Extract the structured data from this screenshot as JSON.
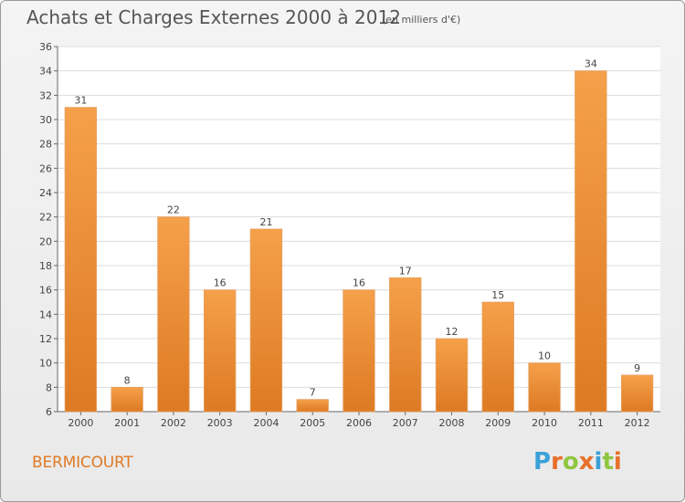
{
  "header": {
    "title": "Achats et Charges Externes 2000 à 2012",
    "subtitle": "(en milliers d'€)"
  },
  "commune": "BERMICOURT",
  "logo": {
    "letters": [
      "P",
      "r",
      "o",
      "x",
      "i",
      "t",
      "i"
    ],
    "colors": [
      "#3aa0d8",
      "#e8702a",
      "#8fc63f",
      "#e8702a",
      "#3aa0d8",
      "#8fc63f",
      "#e8702a"
    ]
  },
  "colors": {
    "bar_top": "#f5a04a",
    "bar_bottom": "#dd7a23",
    "grid": "#dcdcdc"
  },
  "chart_data": {
    "type": "bar",
    "title": "Achats et Charges Externes 2000 à 2012",
    "categories": [
      "2000",
      "2001",
      "2002",
      "2003",
      "2004",
      "2005",
      "2006",
      "2007",
      "2008",
      "2009",
      "2010",
      "2011",
      "2012"
    ],
    "values": [
      31,
      8,
      22,
      16,
      21,
      7,
      16,
      17,
      12,
      15,
      10,
      34,
      9
    ],
    "ylim": [
      6,
      36
    ],
    "yticks": [
      6,
      8,
      10,
      12,
      14,
      16,
      18,
      20,
      22,
      24,
      26,
      28,
      30,
      32,
      34,
      36
    ],
    "grid": true
  }
}
